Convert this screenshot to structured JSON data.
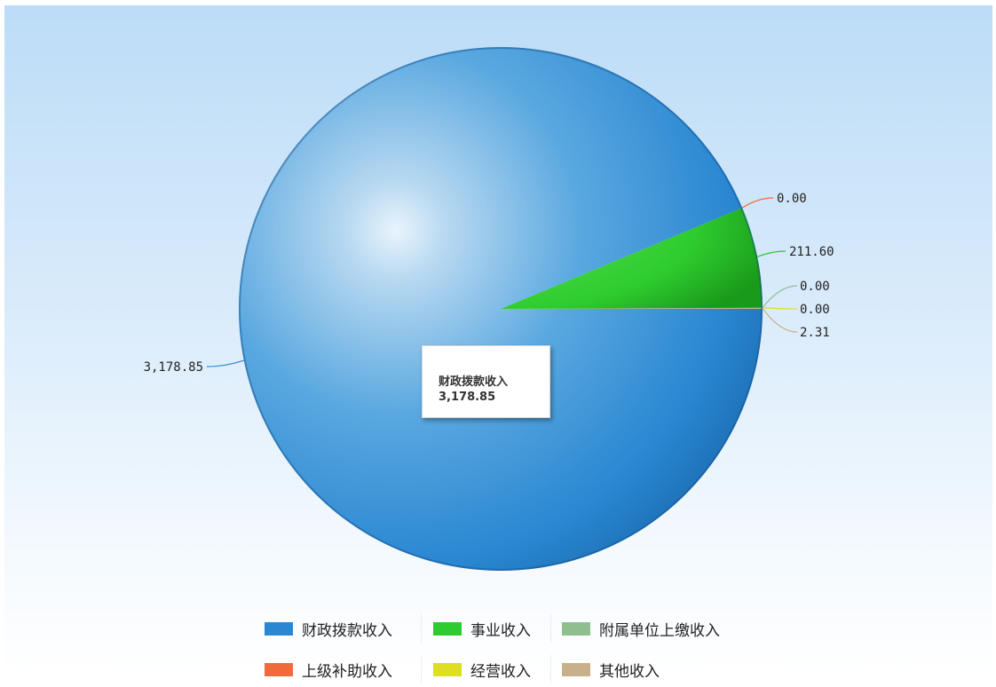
{
  "chart_data": {
    "type": "pie",
    "slices": [
      {
        "name": "财政拨款收入",
        "value": 3178.85,
        "label": "3,178.85",
        "color": "#2a87d1"
      },
      {
        "name": "事业收入",
        "value": 211.6,
        "label": "211.60",
        "color": "#2ecc2e"
      },
      {
        "name": "附属单位上缴收入",
        "value": 0.0,
        "label": "0.00",
        "color": "#8fbe8f"
      },
      {
        "name": "上级补助收入",
        "value": 0.0,
        "label": "0.00",
        "color": "#f06a3a"
      },
      {
        "name": "经营收入",
        "value": 0.0,
        "label": "0.00",
        "color": "#dede22"
      },
      {
        "name": "其他收入",
        "value": 2.31,
        "label": "2.31",
        "color": "#c8b08a"
      }
    ],
    "legend_position": "bottom",
    "tooltip": {
      "name": "财政拨款收入",
      "value": "3,178.85"
    }
  }
}
